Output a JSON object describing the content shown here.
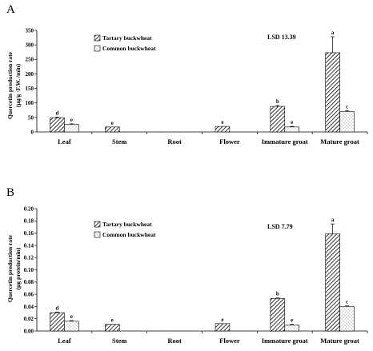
{
  "chart_data": [
    {
      "type": "bar",
      "panel_label": "A",
      "title": "",
      "ylabel_line1": "Quercetin production rate",
      "ylabel_line2": "(µg/g ·F.W. /min)",
      "xlabel": "",
      "ylim": [
        0,
        350
      ],
      "yticks": [
        "0",
        "50",
        "100",
        "150",
        "200",
        "250",
        "300",
        "350"
      ],
      "categories": [
        "Leaf",
        "Stem",
        "Root",
        "Flower",
        "Immature groat",
        "Mature groat"
      ],
      "series": [
        {
          "name": "Tartary buckwheat",
          "values": [
            49,
            17,
            null,
            19,
            88,
            273
          ],
          "errors": [
            2,
            0,
            null,
            0,
            3,
            55
          ],
          "labels": [
            "d",
            "e",
            "",
            "e",
            "b",
            "a"
          ]
        },
        {
          "name": "Common buckwheat",
          "values": [
            26,
            null,
            null,
            null,
            17,
            70
          ],
          "errors": [
            2,
            null,
            null,
            null,
            2,
            3
          ],
          "labels": [
            "e",
            "",
            "",
            "",
            "e",
            "c"
          ]
        }
      ],
      "annotation": "LSD 13.39",
      "grid": false,
      "legend_position": "top-left"
    },
    {
      "type": "bar",
      "panel_label": "B",
      "title": "",
      "ylabel_line1": "Quercetin production rate",
      "ylabel_line2": "(μg protein/min)",
      "xlabel": "",
      "ylim": [
        0,
        0.2
      ],
      "yticks": [
        "0.00",
        "0.02",
        "0.04",
        "0.06",
        "0.08",
        "0.10",
        "0.12",
        "0.14",
        "0.16",
        "0.18",
        "0.20"
      ],
      "categories": [
        "Leaf",
        "Stem",
        "Root",
        "Flower",
        "Immature groat",
        "Mature groat"
      ],
      "series": [
        {
          "name": "Tartary buckwheat",
          "values": [
            0.03,
            0.011,
            null,
            0.012,
            0.053,
            0.159
          ],
          "errors": [
            0.001,
            0,
            null,
            0,
            0.001,
            0.016
          ],
          "labels": [
            "d",
            "e",
            "",
            "e",
            "b",
            "a"
          ]
        },
        {
          "name": "Common buckwheat",
          "values": [
            0.016,
            null,
            null,
            null,
            0.01,
            0.04
          ],
          "errors": [
            0.001,
            null,
            null,
            null,
            0.001,
            0.001
          ],
          "labels": [
            "e",
            "",
            "",
            "",
            "e",
            "c"
          ]
        }
      ],
      "annotation": "LSD 7.79",
      "grid": false,
      "legend_position": "top-left"
    }
  ]
}
